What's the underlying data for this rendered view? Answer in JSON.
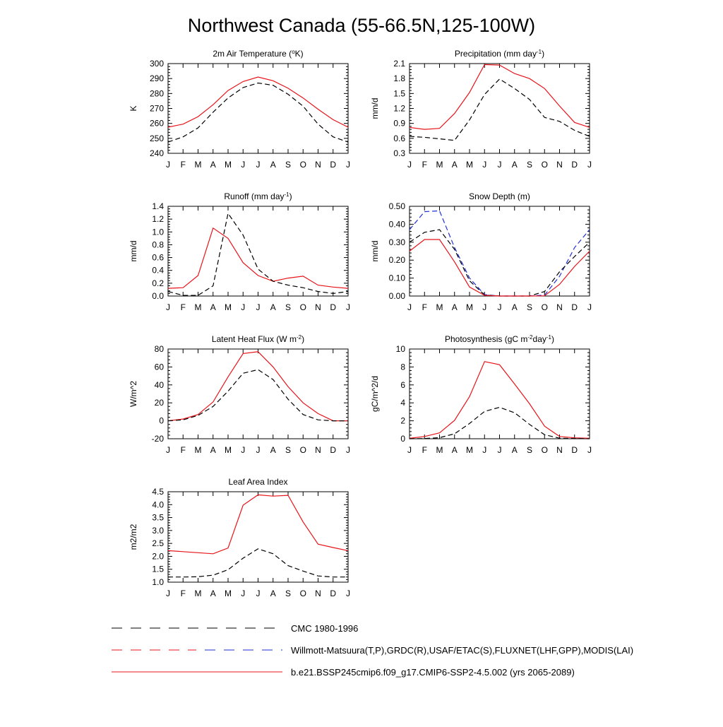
{
  "title": "Northwest Canada (55-66.5N,125-100W)",
  "months": [
    "J",
    "F",
    "M",
    "A",
    "M",
    "J",
    "J",
    "A",
    "S",
    "O",
    "N",
    "D",
    "J"
  ],
  "colors": {
    "model": "#e8141a",
    "obs": "#000000",
    "obs_blue": "#1f2fd6"
  },
  "legend": [
    {
      "label": "CMC 1980-1996",
      "style": "dash-black"
    },
    {
      "label": "Willmott-Matsuura(T,P),GRDC(R),USAF/ETAC(S),FLUXNET(LHF,GPP),MODIS(LAI)",
      "style": "dash-red-blue"
    },
    {
      "label": "b.e21.BSSP245cmip6.f09_g17.CMIP6-SSP2-4.5.002 (yrs 2065-2089)",
      "style": "solid-red"
    }
  ],
  "chart_data": [
    {
      "type": "line",
      "title": "2m Air Temperature (°K)",
      "title_parts": [
        {
          "t": "2m Air Temperature ("
        },
        {
          "t": "o",
          "sup": true
        },
        {
          "t": "K)"
        }
      ],
      "ylabel": "K",
      "ylim": [
        240,
        300
      ],
      "yticks": [
        240,
        250,
        260,
        270,
        280,
        290,
        300
      ],
      "ytick_labels": [
        "240",
        "250",
        "260",
        "270",
        "280",
        "290",
        "300"
      ],
      "series": [
        {
          "style": "model",
          "values": [
            257.5,
            259.5,
            264.5,
            272.5,
            282,
            288,
            291,
            288.5,
            283.5,
            277,
            269.5,
            262.5,
            257.5
          ]
        },
        {
          "style": "obs",
          "values": [
            247.5,
            251,
            257,
            267.5,
            277,
            284,
            287,
            285.5,
            279.5,
            271.5,
            259.5,
            251,
            247.5
          ]
        }
      ]
    },
    {
      "type": "line",
      "title": "Precipitation (mm day-1)",
      "title_parts": [
        {
          "t": "Precipitation (mm day"
        },
        {
          "t": "-1",
          "sup": true
        },
        {
          "t": ")"
        }
      ],
      "ylabel": "mm/d",
      "ylim": [
        0.3,
        2.1
      ],
      "yticks": [
        0.3,
        0.6,
        0.9,
        1.2,
        1.5,
        1.8,
        2.1
      ],
      "ytick_labels": [
        "0.3",
        "0.6",
        "0.9",
        "1.2",
        "1.5",
        "1.8",
        "2.1"
      ],
      "series": [
        {
          "style": "model",
          "values": [
            0.82,
            0.78,
            0.8,
            1.1,
            1.52,
            2.08,
            2.07,
            1.9,
            1.8,
            1.6,
            1.25,
            0.92,
            0.82
          ]
        },
        {
          "style": "obs",
          "values": [
            0.64,
            0.62,
            0.59,
            0.56,
            0.97,
            1.48,
            1.79,
            1.6,
            1.38,
            1.02,
            0.94,
            0.76,
            0.64
          ]
        }
      ]
    },
    {
      "type": "line",
      "title": "Runoff (mm day-1)",
      "title_parts": [
        {
          "t": "Runoff (mm day"
        },
        {
          "t": "-1",
          "sup": true
        },
        {
          "t": ")"
        }
      ],
      "ylabel": "mm/d",
      "ylim": [
        0,
        1.4
      ],
      "yticks": [
        0,
        0.2,
        0.4,
        0.6,
        0.8,
        1.0,
        1.2,
        1.4
      ],
      "ytick_labels": [
        "0.0",
        "0.2",
        "0.4",
        "0.6",
        "0.8",
        "1.0",
        "1.2",
        "1.4"
      ],
      "series": [
        {
          "style": "model",
          "values": [
            0.12,
            0.13,
            0.32,
            1.06,
            0.9,
            0.52,
            0.32,
            0.23,
            0.28,
            0.31,
            0.17,
            0.14,
            0.12
          ]
        },
        {
          "style": "obs",
          "values": [
            0.07,
            0.01,
            0.01,
            0.16,
            1.29,
            0.95,
            0.42,
            0.23,
            0.17,
            0.13,
            0.07,
            0.04,
            0.07
          ]
        }
      ]
    },
    {
      "type": "line",
      "title": "Snow Depth (m)",
      "title_parts": [
        {
          "t": "Snow Depth (m)"
        }
      ],
      "ylabel": "mm/d",
      "ylim": [
        0,
        0.5
      ],
      "yticks": [
        0,
        0.1,
        0.2,
        0.3,
        0.4,
        0.5
      ],
      "ytick_labels": [
        "0.00",
        "0.10",
        "0.20",
        "0.30",
        "0.40",
        "0.50"
      ],
      "series": [
        {
          "style": "obs_blue",
          "values": [
            0.37,
            0.47,
            0.475,
            0.27,
            0.1,
            0.008,
            0.0,
            0.0,
            0.0,
            0.005,
            0.11,
            0.27,
            0.37
          ]
        },
        {
          "style": "obs",
          "values": [
            0.3,
            0.355,
            0.37,
            0.26,
            0.085,
            0.006,
            0.0,
            0.0,
            0.0,
            0.025,
            0.135,
            0.22,
            0.3
          ]
        },
        {
          "style": "model",
          "values": [
            0.25,
            0.315,
            0.315,
            0.19,
            0.05,
            0.004,
            0.0,
            0.0,
            0.0,
            0.001,
            0.065,
            0.165,
            0.25
          ]
        }
      ]
    },
    {
      "type": "line",
      "title": "Latent Heat Flux (W m-2)",
      "title_parts": [
        {
          "t": "Latent Heat Flux (W m"
        },
        {
          "t": "-2",
          "sup": true
        },
        {
          "t": ")"
        }
      ],
      "ylabel": "W/m^2",
      "ylim": [
        -20,
        80
      ],
      "yticks": [
        -20,
        0,
        20,
        40,
        60,
        80
      ],
      "ytick_labels": [
        "-20",
        "0",
        "20",
        "40",
        "60",
        "80"
      ],
      "series": [
        {
          "style": "model",
          "values": [
            0,
            2,
            7,
            21,
            49,
            75,
            77,
            60,
            38,
            20,
            8,
            0,
            0
          ]
        },
        {
          "style": "obs",
          "values": [
            0,
            1,
            6,
            16,
            33,
            53,
            57,
            46,
            24,
            7,
            1,
            0,
            0
          ]
        }
      ]
    },
    {
      "type": "line",
      "title": "Photosynthesis (gC m-2day-1)",
      "title_parts": [
        {
          "t": "Photosynthesis (gC m"
        },
        {
          "t": "-2",
          "sup": true
        },
        {
          "t": "day"
        },
        {
          "t": "-1",
          "sup": true
        },
        {
          "t": ")"
        }
      ],
      "ylabel": "gC/m^2/d",
      "ylim": [
        0,
        10
      ],
      "yticks": [
        0,
        2,
        4,
        6,
        8,
        10
      ],
      "ytick_labels": [
        "0",
        "2",
        "4",
        "6",
        "8",
        "10"
      ],
      "series": [
        {
          "style": "model",
          "values": [
            0.05,
            0.25,
            0.65,
            2.05,
            4.7,
            8.6,
            8.25,
            6.1,
            3.9,
            1.4,
            0.25,
            0.1,
            0.05
          ]
        },
        {
          "style": "obs",
          "values": [
            0,
            0.02,
            0.12,
            0.55,
            1.7,
            3.05,
            3.5,
            2.9,
            1.6,
            0.45,
            0.06,
            0.02,
            0
          ]
        }
      ]
    },
    {
      "type": "line",
      "title": "Leaf Area Index",
      "title_parts": [
        {
          "t": "Leaf Area Index"
        }
      ],
      "ylabel": "m2/m2",
      "ylim": [
        1.0,
        4.5
      ],
      "yticks": [
        1.0,
        1.5,
        2.0,
        2.5,
        3.0,
        3.5,
        4.0,
        4.5
      ],
      "ytick_labels": [
        "1.0",
        "1.5",
        "2.0",
        "2.5",
        "3.0",
        "3.5",
        "4.0",
        "4.5"
      ],
      "series": [
        {
          "style": "model",
          "values": [
            2.22,
            2.18,
            2.14,
            2.1,
            2.32,
            3.98,
            4.38,
            4.33,
            4.36,
            3.33,
            2.47,
            2.34,
            2.22
          ]
        },
        {
          "style": "obs",
          "values": [
            1.2,
            1.2,
            1.21,
            1.27,
            1.48,
            1.93,
            2.29,
            2.1,
            1.64,
            1.43,
            1.24,
            1.2,
            1.2
          ]
        }
      ]
    }
  ]
}
